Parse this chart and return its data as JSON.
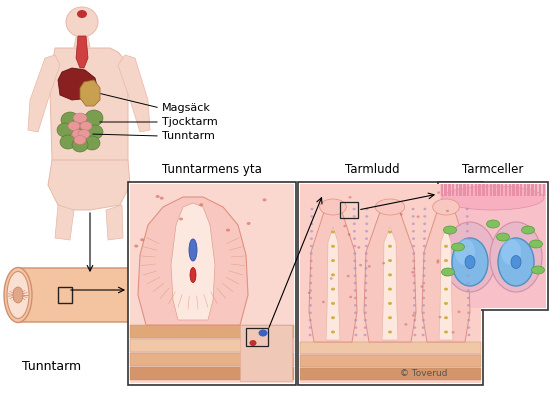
{
  "background_color": "#ffffff",
  "labels": {
    "magsack": "Magsäck",
    "tjocktarm": "Tjocktarm",
    "tunntarm_label": "Tunntarm",
    "tunntarm_bottom": "Tunntarm",
    "tunntarmens_yta": "Tunntarmens yta",
    "tarmludd": "Tarmludd",
    "tarmceller": "Tarmceller",
    "copyright": "© Toverud"
  },
  "font_sizes": {
    "body_labels": 8,
    "section_titles": 8.5,
    "copyright": 6.5
  }
}
